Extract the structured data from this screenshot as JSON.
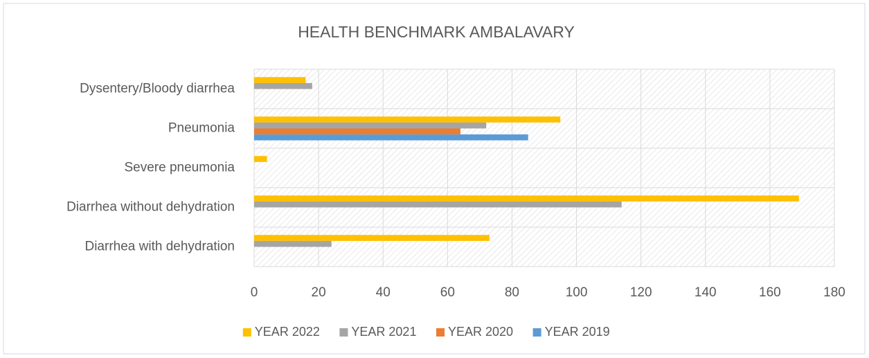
{
  "chart_data": {
    "type": "bar",
    "orientation": "horizontal",
    "title": "HEALTH BENCHMARK AMBALAVARY",
    "categories": [
      "Dysentery/Bloody diarrhea",
      "Pneumonia",
      "Severe pneumonia",
      "Diarrhea without dehydration",
      "Diarrhea with dehydration"
    ],
    "series": [
      {
        "name": "YEAR 2022",
        "color": "#ffc000",
        "values": [
          16,
          95,
          4,
          169,
          73
        ]
      },
      {
        "name": "YEAR 2021",
        "color": "#a5a5a5",
        "values": [
          18,
          72,
          null,
          114,
          24
        ]
      },
      {
        "name": "YEAR 2020",
        "color": "#ed7d31",
        "values": [
          null,
          64,
          null,
          null,
          null
        ]
      },
      {
        "name": "YEAR 2019",
        "color": "#5b9bd5",
        "values": [
          null,
          85,
          null,
          null,
          null
        ]
      }
    ],
    "xlim": [
      0,
      180
    ],
    "xticks": [
      0,
      20,
      40,
      60,
      80,
      100,
      120,
      140,
      160,
      180
    ],
    "grid": true,
    "legend": "bottom"
  }
}
